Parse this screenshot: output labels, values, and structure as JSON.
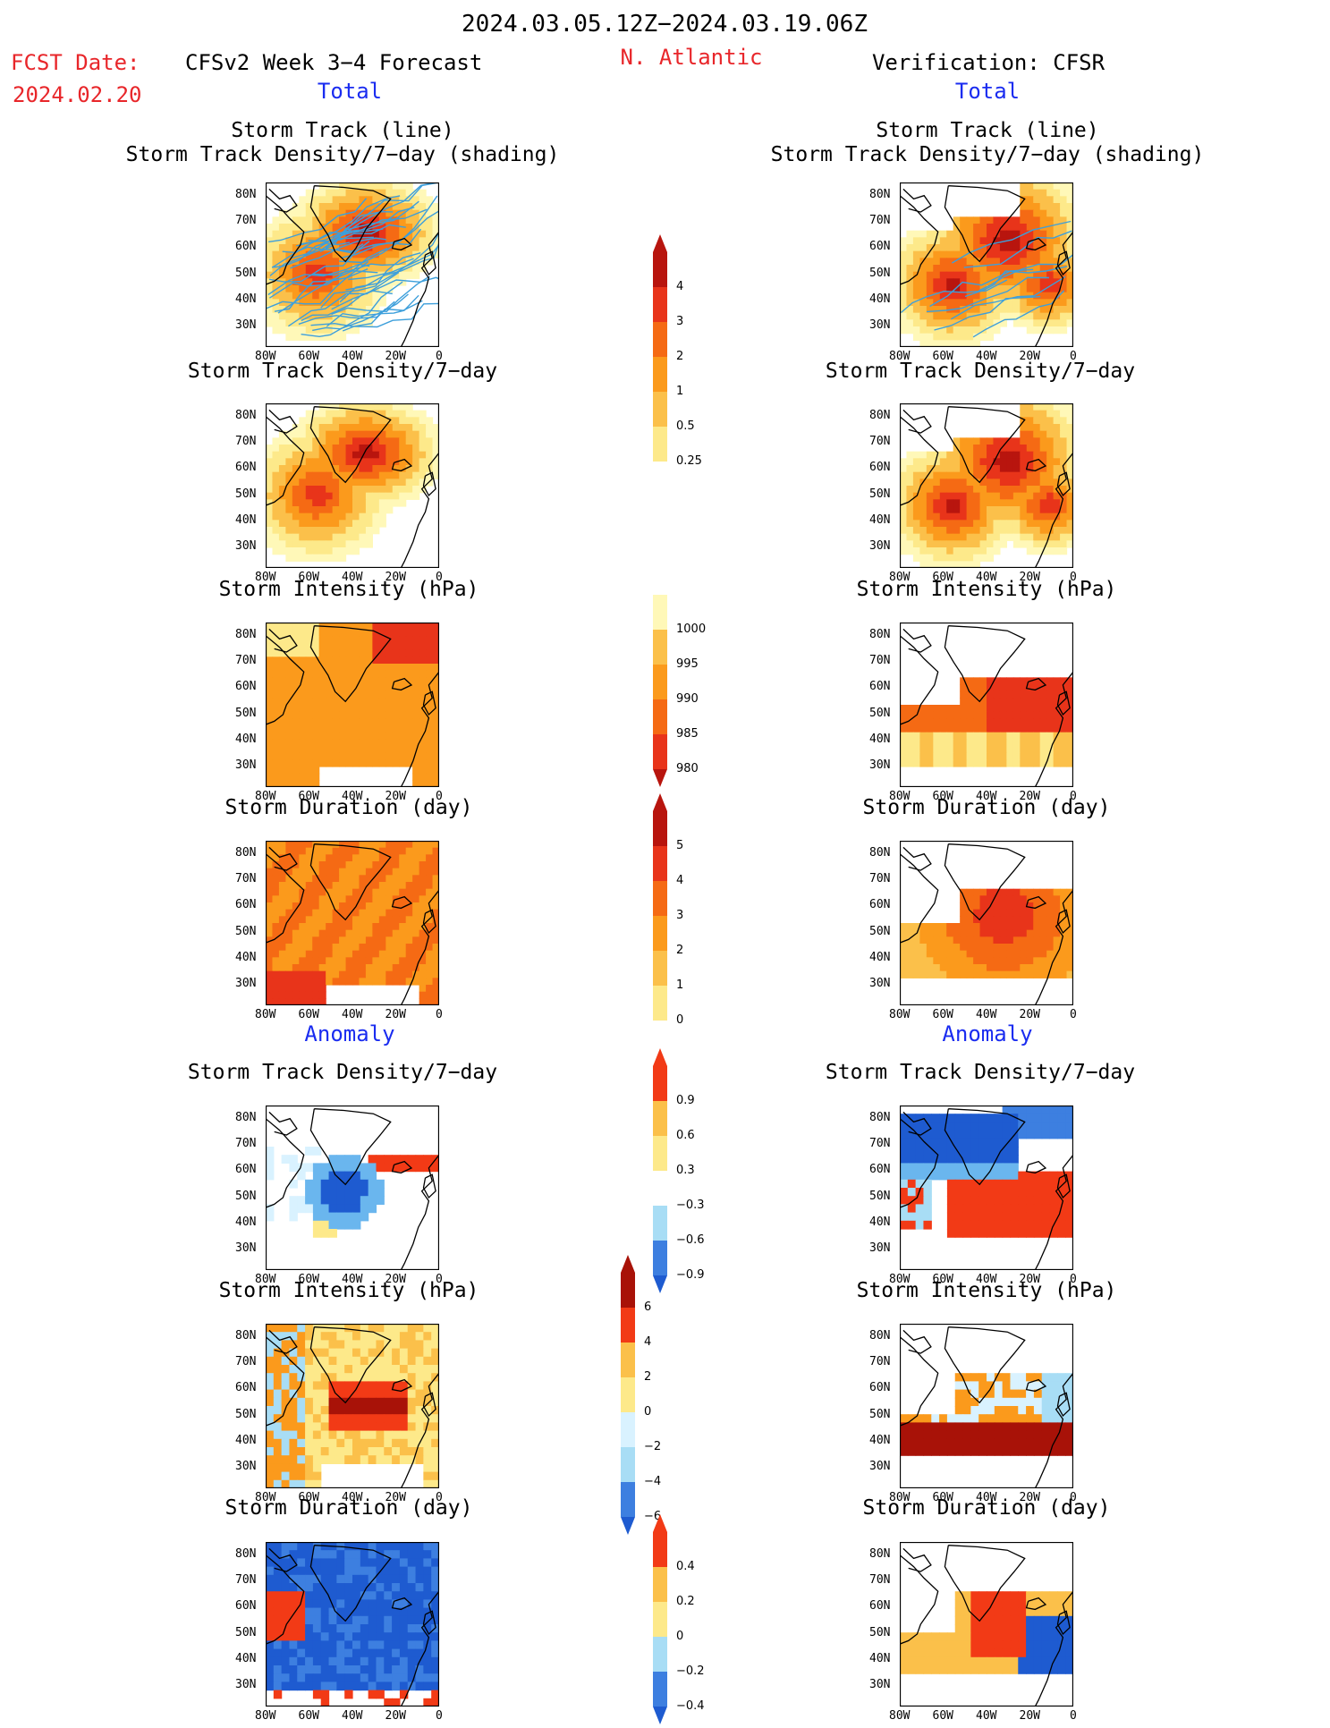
{
  "header": {
    "period": "2024.03.05.12Z−2024.03.19.06Z",
    "fcst_label": "FCST Date:",
    "fcst_date": "2024.02.20",
    "model_label": "CFSv2 Week 3−4 Forecast",
    "region": "N. Atlantic",
    "verification": "Verification: CFSR",
    "total_left": "Total",
    "total_right": "Total",
    "anom_left": "Anomaly",
    "anom_right": "Anomaly"
  },
  "axes": {
    "y_ticks": [
      "80N",
      "70N",
      "60N",
      "50N",
      "40N",
      "30N"
    ],
    "x_ticks": [
      "80W",
      "60W",
      "40W",
      "20W",
      "0"
    ]
  },
  "titles": {
    "track_line": "Storm Track (line)",
    "track_shading": "Storm Track Density/7−day (shading)",
    "density": "Storm Track Density/7−day",
    "intensity": "Storm Intensity (hPa)",
    "duration": "Storm Duration (day)"
  },
  "colorbars": {
    "density_total": [
      "4",
      "3",
      "2",
      "1",
      "0.5",
      "0.25"
    ],
    "intensity_total": [
      "1000",
      "995",
      "990",
      "985",
      "980"
    ],
    "duration_total": [
      "5",
      "4",
      "3",
      "2",
      "1",
      "0"
    ],
    "density_anom": [
      "0.9",
      "0.6",
      "0.3",
      "−0.3",
      "−0.6",
      "−0.9"
    ],
    "intensity_anom": [
      "6",
      "4",
      "2",
      "0",
      "−2",
      "−4",
      "−6"
    ],
    "duration_anom": [
      "0.4",
      "0.2",
      "0",
      "−0.2",
      "−0.4"
    ]
  },
  "palette": {
    "warm": [
      "#fff8b8",
      "#fde98a",
      "#fbc04a",
      "#fb9a1c",
      "#f56a14",
      "#e8341a",
      "#b8150e"
    ],
    "cool": [
      "#d9f2ff",
      "#a8ddf5",
      "#6ab6ee",
      "#3d7fe0",
      "#1e5bd0"
    ],
    "anom_warm": [
      "#fde98a",
      "#fbc04a",
      "#fb9a1c",
      "#f23a16",
      "#a81208"
    ],
    "track_line": "#3d9fdb",
    "title_red": "#e8262a",
    "title_blue": "#1a2cf0"
  },
  "chart_data": [
    {
      "type": "heatmap",
      "title": "Storm Track (line) / Storm Track Density/7−day (shading)",
      "panel": "CFSv2 Total",
      "x_range": [
        "80W",
        "0"
      ],
      "y_range": [
        "25N",
        "85N"
      ],
      "legend_levels": [
        0.25,
        0.5,
        1,
        2,
        3,
        4
      ],
      "max_region": "60N–65N, 40W–20W"
    },
    {
      "type": "heatmap",
      "title": "Storm Track (line) / Storm Track Density/7−day (shading)",
      "panel": "CFSR Total",
      "x_range": [
        "80W",
        "0"
      ],
      "y_range": [
        "25N",
        "85N"
      ],
      "legend_levels": [
        0.25,
        0.5,
        1,
        2,
        3,
        4
      ],
      "max_region": "40N–65N, 60W–20W"
    },
    {
      "type": "heatmap",
      "title": "Storm Track Density/7−day",
      "panel": "CFSv2 Total",
      "legend_levels": [
        0.25,
        0.5,
        1,
        2,
        3,
        4
      ]
    },
    {
      "type": "heatmap",
      "title": "Storm Track Density/7−day",
      "panel": "CFSR Total",
      "legend_levels": [
        0.25,
        0.5,
        1,
        2,
        3,
        4
      ]
    },
    {
      "type": "heatmap",
      "title": "Storm Intensity (hPa)",
      "panel": "CFSv2 Total",
      "legend_levels": [
        980,
        985,
        990,
        995,
        1000
      ]
    },
    {
      "type": "heatmap",
      "title": "Storm Intensity (hPa)",
      "panel": "CFSR Total",
      "legend_levels": [
        980,
        985,
        990,
        995,
        1000
      ]
    },
    {
      "type": "heatmap",
      "title": "Storm Duration (day)",
      "panel": "CFSv2 Total",
      "legend_levels": [
        0,
        1,
        2,
        3,
        4,
        5
      ]
    },
    {
      "type": "heatmap",
      "title": "Storm Duration (day)",
      "panel": "CFSR Total",
      "legend_levels": [
        0,
        1,
        2,
        3,
        4,
        5
      ]
    },
    {
      "type": "heatmap",
      "title": "Storm Track Density/7−day",
      "panel": "CFSv2 Anomaly",
      "legend_levels": [
        -0.9,
        -0.6,
        -0.3,
        0.3,
        0.6,
        0.9
      ]
    },
    {
      "type": "heatmap",
      "title": "Storm Track Density/7−day",
      "panel": "CFSR Anomaly",
      "legend_levels": [
        -0.9,
        -0.6,
        -0.3,
        0.3,
        0.6,
        0.9
      ]
    },
    {
      "type": "heatmap",
      "title": "Storm Intensity (hPa)",
      "panel": "CFSv2 Anomaly",
      "legend_levels": [
        -6,
        -4,
        -2,
        0,
        2,
        4,
        6
      ]
    },
    {
      "type": "heatmap",
      "title": "Storm Intensity (hPa)",
      "panel": "CFSR Anomaly",
      "legend_levels": [
        -6,
        -4,
        -2,
        0,
        2,
        4,
        6
      ]
    },
    {
      "type": "heatmap",
      "title": "Storm Duration (day)",
      "panel": "CFSv2 Anomaly",
      "legend_levels": [
        -0.4,
        -0.2,
        0,
        0.2,
        0.4
      ]
    },
    {
      "type": "heatmap",
      "title": "Storm Duration (day)",
      "panel": "CFSR Anomaly",
      "legend_levels": [
        -0.4,
        -0.2,
        0,
        0.2,
        0.4
      ]
    }
  ]
}
